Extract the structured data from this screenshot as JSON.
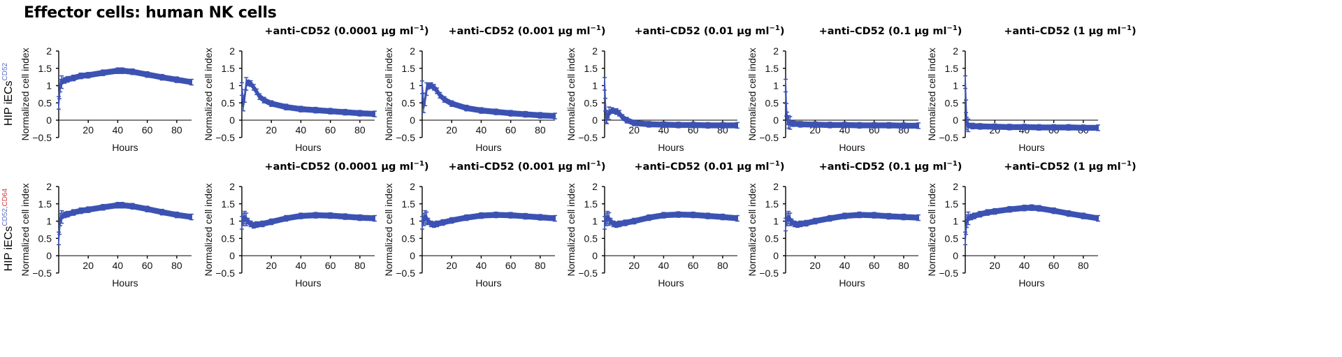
{
  "main_title": "Effector cells: human NK cells",
  "colors": {
    "series": "#3c52b3",
    "sup_cd52": "#5b6cc9",
    "sup_cd64": "#d6393a"
  },
  "rows": [
    {
      "label_base": "HIP iECs",
      "label_sup": [
        {
          "text": "CD52",
          "color": "#5b6cc9"
        }
      ]
    },
    {
      "label_base": "HIP iECs",
      "label_sup": [
        {
          "text": "CD52",
          "color": "#5b6cc9"
        },
        {
          "text": ",",
          "color": "#d6393a"
        },
        {
          "text": "CD64",
          "color": "#d6393a"
        }
      ]
    }
  ],
  "panel_titles": {
    "prefix": "+anti–CD52 (",
    "unit": " μg ml",
    "exponent": "−1",
    "suffix": ")",
    "doses": [
      "0.0001",
      "0.001",
      "0.01",
      "0.1",
      "1"
    ]
  },
  "axes": {
    "xlabel": "Hours",
    "ylabel": "Normalized cell index",
    "x_ticks": [
      "20",
      "40",
      "60",
      "80"
    ],
    "y_ticks": [
      "2",
      "1.5",
      "1",
      "0.5",
      "0",
      "−0.5"
    ]
  },
  "chart_data": [
    {
      "type": "line",
      "row": 0,
      "col": 0,
      "title": "",
      "xlabel": "Hours",
      "ylabel": "Normalized cell index",
      "xlim": [
        0,
        90
      ],
      "ylim": [
        -0.5,
        2
      ],
      "series": [
        {
          "name": "HIP iECs CD52",
          "x": [
            0,
            0.5,
            1,
            2,
            4,
            6,
            10,
            15,
            20,
            30,
            40,
            43,
            50,
            60,
            70,
            80,
            90
          ],
          "values": [
            0.5,
            0.8,
            1.0,
            1.1,
            1.15,
            1.18,
            1.22,
            1.28,
            1.3,
            1.37,
            1.43,
            1.43,
            1.4,
            1.32,
            1.24,
            1.17,
            1.1
          ]
        }
      ]
    },
    {
      "type": "line",
      "row": 0,
      "col": 1,
      "title": "+anti–CD52 (0.0001 μg ml−1)",
      "xlabel": "Hours",
      "ylabel": "Normalized cell index",
      "xlim": [
        0,
        90
      ],
      "ylim": [
        -0.5,
        2
      ],
      "series": [
        {
          "name": "anti-CD52 0.0001",
          "x": [
            0,
            1,
            2,
            3,
            4,
            6,
            8,
            10,
            12,
            15,
            20,
            30,
            40,
            50,
            60,
            70,
            80,
            90
          ],
          "values": [
            0.9,
            0.45,
            0.7,
            1.05,
            1.08,
            1.06,
            0.95,
            0.82,
            0.68,
            0.58,
            0.48,
            0.38,
            0.32,
            0.29,
            0.26,
            0.23,
            0.2,
            0.18
          ]
        }
      ]
    },
    {
      "type": "line",
      "row": 0,
      "col": 2,
      "title": "+anti–CD52 (0.001 μg ml−1)",
      "xlabel": "Hours",
      "ylabel": "Normalized cell index",
      "xlim": [
        0,
        90
      ],
      "ylim": [
        -0.5,
        2
      ],
      "series": [
        {
          "name": "anti-CD52 0.001",
          "x": [
            0,
            1,
            2,
            3,
            4,
            6,
            8,
            10,
            12,
            15,
            20,
            30,
            40,
            50,
            60,
            70,
            80,
            90
          ],
          "values": [
            0.95,
            0.4,
            0.6,
            0.9,
            0.98,
            1.0,
            0.95,
            0.85,
            0.72,
            0.6,
            0.48,
            0.35,
            0.28,
            0.24,
            0.2,
            0.17,
            0.14,
            0.12
          ]
        }
      ]
    },
    {
      "type": "line",
      "row": 0,
      "col": 3,
      "title": "+anti–CD52 (0.01 μg ml−1)",
      "xlabel": "Hours",
      "ylabel": "Normalized cell index",
      "xlim": [
        0,
        90
      ],
      "ylim": [
        -0.5,
        2
      ],
      "series": [
        {
          "name": "anti-CD52 0.01",
          "x": [
            0,
            0.5,
            1,
            1.5,
            3,
            5,
            8,
            10,
            12,
            15,
            20,
            30,
            40,
            50,
            60,
            70,
            80,
            90
          ],
          "values": [
            1.05,
            0.45,
            0.1,
            0.08,
            0.2,
            0.28,
            0.25,
            0.2,
            0.08,
            0.0,
            -0.08,
            -0.12,
            -0.13,
            -0.14,
            -0.14,
            -0.15,
            -0.15,
            -0.15
          ]
        }
      ]
    },
    {
      "type": "line",
      "row": 0,
      "col": 4,
      "title": "+anti–CD52 (0.1 μg ml−1)",
      "xlabel": "Hours",
      "ylabel": "Normalized cell index",
      "xlim": [
        0,
        90
      ],
      "ylim": [
        -0.5,
        2
      ],
      "series": [
        {
          "name": "anti-CD52 0.1",
          "x": [
            0,
            0.5,
            1,
            2,
            3,
            5,
            10,
            20,
            30,
            40,
            50,
            60,
            70,
            80,
            90
          ],
          "values": [
            1.0,
            0.3,
            0.05,
            -0.05,
            -0.08,
            -0.1,
            -0.12,
            -0.13,
            -0.14,
            -0.14,
            -0.15,
            -0.15,
            -0.15,
            -0.16,
            -0.16
          ]
        }
      ]
    },
    {
      "type": "line",
      "row": 0,
      "col": 5,
      "title": "+anti–CD52 (1 μg ml−1)",
      "xlabel": "Hours",
      "ylabel": "Normalized cell index",
      "xlim": [
        0,
        90
      ],
      "ylim": [
        -0.5,
        2
      ],
      "series": [
        {
          "name": "anti-CD52 1",
          "x": [
            0,
            0.5,
            1,
            2,
            5,
            10,
            20,
            30,
            40,
            50,
            60,
            70,
            80,
            90
          ],
          "values": [
            1.1,
            0.4,
            -0.1,
            -0.15,
            -0.17,
            -0.18,
            -0.19,
            -0.2,
            -0.2,
            -0.21,
            -0.21,
            -0.21,
            -0.22,
            -0.22
          ]
        }
      ]
    },
    {
      "type": "line",
      "row": 1,
      "col": 0,
      "title": "",
      "xlabel": "Hours",
      "ylabel": "Normalized cell index",
      "xlim": [
        0,
        90
      ],
      "ylim": [
        -0.5,
        2
      ],
      "series": [
        {
          "name": "HIP iECs CD52,CD64",
          "x": [
            0,
            0.5,
            1,
            2,
            4,
            6,
            10,
            15,
            20,
            30,
            40,
            43,
            50,
            60,
            70,
            80,
            90
          ],
          "values": [
            0.5,
            0.8,
            1.05,
            1.12,
            1.18,
            1.2,
            1.25,
            1.3,
            1.33,
            1.4,
            1.46,
            1.46,
            1.43,
            1.35,
            1.26,
            1.18,
            1.12
          ]
        }
      ]
    },
    {
      "type": "line",
      "row": 1,
      "col": 1,
      "title": "+anti–CD52 (0.0001 μg ml−1)",
      "xlabel": "Hours",
      "ylabel": "Normalized cell index",
      "xlim": [
        0,
        90
      ],
      "ylim": [
        -0.5,
        2
      ],
      "series": [
        {
          "name": "anti-CD52 0.0001",
          "x": [
            0,
            1,
            2,
            3,
            4,
            6,
            8,
            10,
            14,
            20,
            30,
            40,
            50,
            60,
            70,
            80,
            90
          ],
          "values": [
            0.95,
            1.05,
            1.1,
            1.05,
            1.0,
            0.92,
            0.88,
            0.9,
            0.92,
            0.98,
            1.08,
            1.15,
            1.17,
            1.16,
            1.13,
            1.1,
            1.08
          ]
        }
      ]
    },
    {
      "type": "line",
      "row": 1,
      "col": 2,
      "title": "+anti–CD52 (0.001 μg ml−1)",
      "xlabel": "Hours",
      "ylabel": "Normalized cell index",
      "xlim": [
        0,
        90
      ],
      "ylim": [
        -0.5,
        2
      ],
      "series": [
        {
          "name": "anti-CD52 0.001",
          "x": [
            0,
            1,
            2,
            3,
            4,
            6,
            8,
            10,
            14,
            20,
            30,
            40,
            50,
            60,
            70,
            80,
            90
          ],
          "values": [
            0.95,
            1.05,
            1.12,
            1.08,
            1.0,
            0.92,
            0.9,
            0.92,
            0.96,
            1.02,
            1.1,
            1.16,
            1.18,
            1.17,
            1.14,
            1.11,
            1.08
          ]
        }
      ]
    },
    {
      "type": "line",
      "row": 1,
      "col": 3,
      "title": "+anti–CD52 (0.01 μg ml−1)",
      "xlabel": "Hours",
      "ylabel": "Normalized cell index",
      "xlim": [
        0,
        90
      ],
      "ylim": [
        -0.5,
        2
      ],
      "series": [
        {
          "name": "anti-CD52 0.01",
          "x": [
            0,
            1,
            2,
            3,
            4,
            6,
            8,
            10,
            14,
            20,
            30,
            40,
            50,
            60,
            70,
            80,
            90
          ],
          "values": [
            0.95,
            1.05,
            1.1,
            1.06,
            1.0,
            0.92,
            0.9,
            0.92,
            0.95,
            1.0,
            1.1,
            1.17,
            1.19,
            1.18,
            1.15,
            1.12,
            1.08
          ]
        }
      ]
    },
    {
      "type": "line",
      "row": 1,
      "col": 4,
      "title": "+anti–CD52 (0.1 μg ml−1)",
      "xlabel": "Hours",
      "ylabel": "Normalized cell index",
      "xlim": [
        0,
        90
      ],
      "ylim": [
        -0.5,
        2
      ],
      "series": [
        {
          "name": "anti-CD52 0.1",
          "x": [
            0,
            1,
            2,
            3,
            4,
            6,
            8,
            10,
            14,
            20,
            30,
            40,
            50,
            60,
            70,
            80,
            90
          ],
          "values": [
            0.9,
            1.05,
            1.1,
            1.05,
            0.98,
            0.92,
            0.9,
            0.92,
            0.94,
            1.0,
            1.08,
            1.15,
            1.18,
            1.17,
            1.14,
            1.12,
            1.1
          ]
        }
      ]
    },
    {
      "type": "line",
      "row": 1,
      "col": 5,
      "title": "+anti–CD52 (1 μg ml−1)",
      "xlabel": "Hours",
      "ylabel": "Normalized cell index",
      "xlim": [
        0,
        90
      ],
      "ylim": [
        -0.5,
        2
      ],
      "series": [
        {
          "name": "anti-CD52 1",
          "x": [
            0,
            0.5,
            1,
            2,
            4,
            6,
            10,
            15,
            20,
            30,
            40,
            45,
            50,
            60,
            70,
            80,
            90
          ],
          "values": [
            0.5,
            0.8,
            1.0,
            1.08,
            1.12,
            1.15,
            1.2,
            1.25,
            1.28,
            1.34,
            1.38,
            1.39,
            1.37,
            1.3,
            1.22,
            1.15,
            1.08
          ]
        }
      ]
    }
  ]
}
